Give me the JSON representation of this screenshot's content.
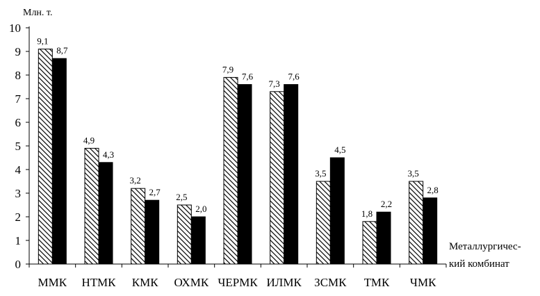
{
  "chart_data": {
    "type": "bar",
    "ylabel": "Млн. т.",
    "xlabel": [
      "Металлургичес-",
      "кий комбинат"
    ],
    "ylim": [
      0,
      10
    ],
    "yticks": [
      0,
      1,
      2,
      3,
      4,
      5,
      6,
      7,
      8,
      9,
      10
    ],
    "categories": [
      "ММК",
      "НТМК",
      "КМК",
      "ОХМК",
      "ЧЕРМК",
      "ИЛМК",
      "ЗСМК",
      "ТМК",
      "ЧМК"
    ],
    "series": [
      {
        "style": "hatched",
        "values": [
          9.1,
          4.9,
          3.2,
          2.5,
          7.9,
          7.3,
          3.5,
          1.8,
          3.5
        ],
        "labels": [
          "9,1",
          "4,9",
          "3,2",
          "2,5",
          "7,9",
          "7,3",
          "3,5",
          "1,8",
          "3,5"
        ],
        "color": "#000000"
      },
      {
        "style": "solid",
        "values": [
          8.7,
          4.3,
          2.7,
          2.0,
          7.6,
          7.6,
          4.5,
          2.2,
          2.8
        ],
        "labels": [
          "8,7",
          "4,3",
          "2,7",
          "2,0",
          "7,6",
          "7,6",
          "4,5",
          "2,2",
          "2,8"
        ],
        "color": "#000000"
      }
    ],
    "grid": false,
    "legend": "none"
  }
}
